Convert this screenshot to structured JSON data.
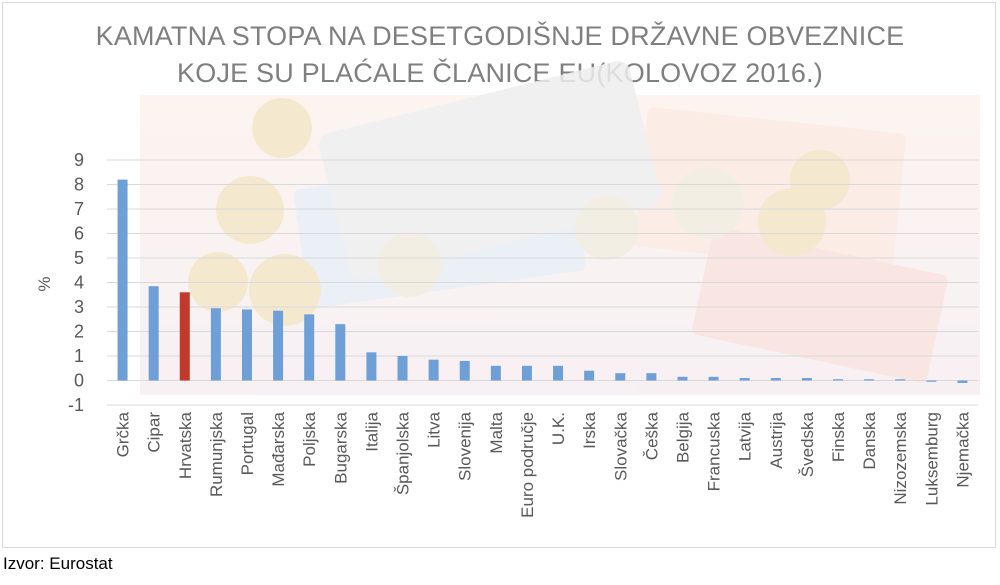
{
  "title_lines": [
    "KAMATNA STOPA NA DESETGODIŠNJE DRŽAVNE OBVEZNICE",
    "KOJE SU PLAĆALE ČLANICE EU(KOLOVOZ 2016.)"
  ],
  "source": "Izvor: Eurostat",
  "colors": {
    "bar": "#6e9fd6",
    "highlight": "#c0392b",
    "grid": "#d9d9d9",
    "text": "#595959"
  },
  "chart_data": {
    "type": "bar",
    "title": "KAMATNA STOPA NA DESETGODIŠNJE DRŽAVNE OBVEZNICE KOJE SU PLAĆALE ČLANICE EU(KOLOVOZ 2016.)",
    "ylabel": "%",
    "xlabel": "",
    "ylim": [
      -1,
      9
    ],
    "yticks": [
      -1,
      0,
      1,
      2,
      3,
      4,
      5,
      6,
      7,
      8,
      9
    ],
    "grid": true,
    "highlight_category": "Hrvatska",
    "categories": [
      "Grčka",
      "Cipar",
      "Hrvatska",
      "Rumunjska",
      "Portugal",
      "Mađarska",
      "Poljska",
      "Bugarska",
      "Italija",
      "Španjolska",
      "Litva",
      "Slovenija",
      "Malta",
      "Euro područje",
      "U.K.",
      "Irska",
      "Slovačka",
      "Češka",
      "Belgija",
      "Francuska",
      "Latvija",
      "Austrija",
      "Švedska",
      "Finska",
      "Danska",
      "Nizozemska",
      "Luksemburg",
      "Njemačka"
    ],
    "values": [
      8.2,
      3.85,
      3.6,
      2.95,
      2.9,
      2.85,
      2.7,
      2.3,
      1.15,
      1.0,
      0.85,
      0.8,
      0.6,
      0.6,
      0.6,
      0.4,
      0.3,
      0.3,
      0.15,
      0.15,
      0.1,
      0.1,
      0.1,
      0.05,
      0.05,
      0.05,
      -0.05,
      -0.1
    ]
  }
}
